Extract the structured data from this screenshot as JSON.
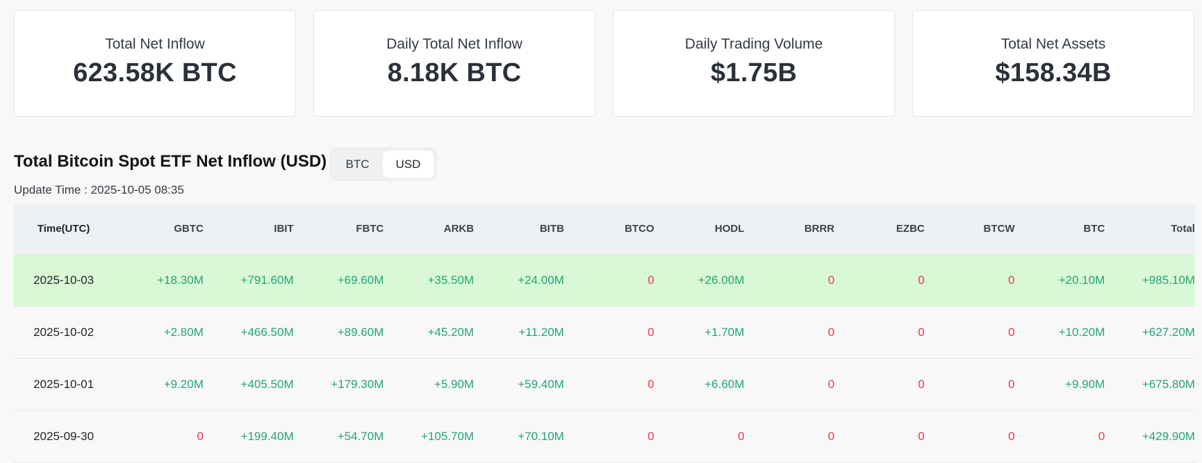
{
  "stats": [
    {
      "label": "Total Net Inflow",
      "value": "623.58K BTC"
    },
    {
      "label": "Daily Total Net Inflow",
      "value": "8.18K BTC"
    },
    {
      "label": "Daily Trading Volume",
      "value": "$1.75B"
    },
    {
      "label": "Total Net Assets",
      "value": "$158.34B"
    }
  ],
  "section": {
    "title": "Total Bitcoin Spot ETF Net Inflow (USD)",
    "update_label": "Update Time : ",
    "update_value": "2025-10-05 08:35"
  },
  "toggle": {
    "btc": "BTC",
    "usd": "USD",
    "selected": "USD"
  },
  "colors": {
    "positive": "#22a574",
    "zero": "#f0364e",
    "highlight_row": "#d9f8d5"
  },
  "table": {
    "headers": [
      "Time(UTC)",
      "GBTC",
      "IBIT",
      "FBTC",
      "ARKB",
      "BITB",
      "BTCO",
      "HODL",
      "BRRR",
      "EZBC",
      "BTCW",
      "BTC",
      "Total"
    ],
    "rows": [
      [
        "2025-10-03",
        "+18.30M",
        "+791.60M",
        "+69.60M",
        "+35.50M",
        "+24.00M",
        "0",
        "+26.00M",
        "0",
        "0",
        "0",
        "+20.10M",
        "+985.10M"
      ],
      [
        "2025-10-02",
        "+2.80M",
        "+466.50M",
        "+89.60M",
        "+45.20M",
        "+11.20M",
        "0",
        "+1.70M",
        "0",
        "0",
        "0",
        "+10.20M",
        "+627.20M"
      ],
      [
        "2025-10-01",
        "+9.20M",
        "+405.50M",
        "+179.30M",
        "+5.90M",
        "+59.40M",
        "0",
        "+6.60M",
        "0",
        "0",
        "0",
        "+9.90M",
        "+675.80M"
      ],
      [
        "2025-09-30",
        "0",
        "+199.40M",
        "+54.70M",
        "+105.70M",
        "+70.10M",
        "0",
        "0",
        "0",
        "0",
        "0",
        "0",
        "+429.90M"
      ]
    ]
  }
}
